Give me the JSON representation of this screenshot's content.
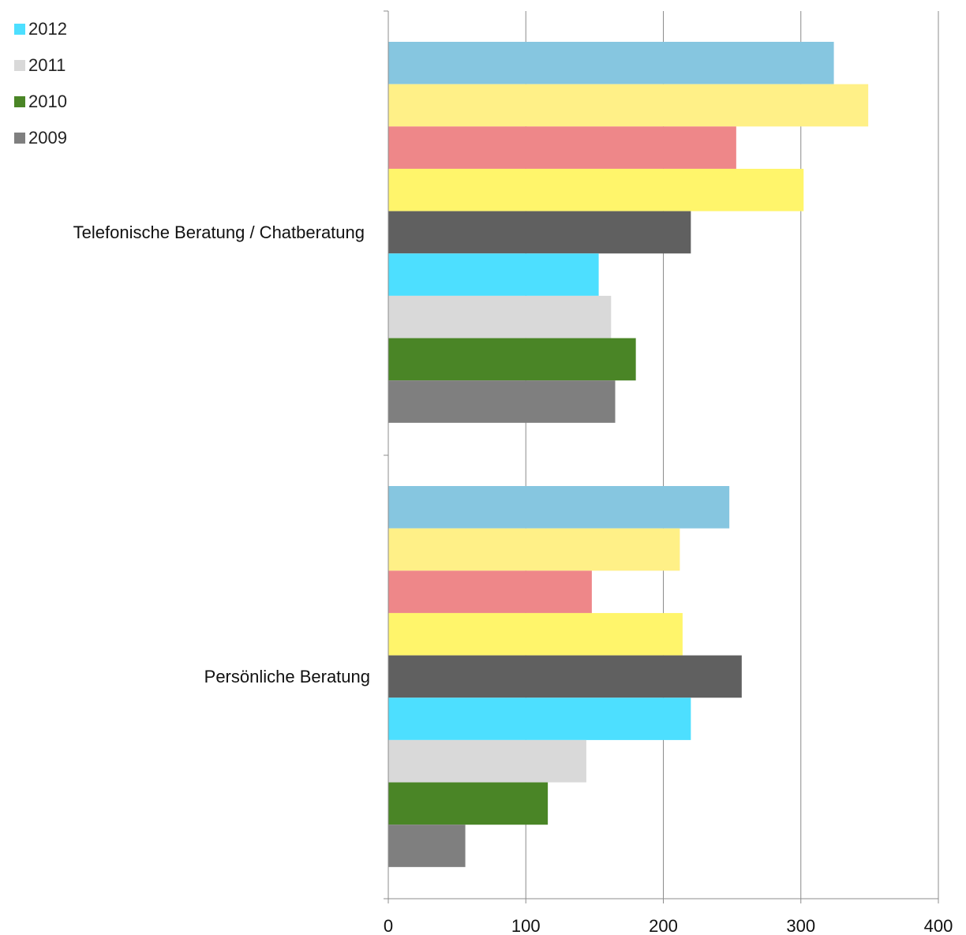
{
  "chart_data": {
    "type": "bar",
    "orientation": "horizontal",
    "categories": [
      "Telefonische Beratung / Chatberatung",
      "Persönliche Beratung"
    ],
    "xlim": [
      0,
      400
    ],
    "x_ticks": [
      "0",
      "100",
      "200",
      "300",
      "400"
    ],
    "grid": true,
    "legend_position": "top-left",
    "legend": [
      {
        "label": "2012",
        "color": "#4ddfff"
      },
      {
        "label": "2011",
        "color": "#d9d9d9"
      },
      {
        "label": "2010",
        "color": "#4a8526"
      },
      {
        "label": "2009",
        "color": "#7f7f7f"
      }
    ],
    "series": [
      {
        "color": "#86c6e0",
        "values": [
          324,
          248
        ]
      },
      {
        "color": "#fff087",
        "values": [
          349,
          212
        ]
      },
      {
        "color": "#ee8789",
        "values": [
          253,
          148
        ]
      },
      {
        "color": "#fff56b",
        "values": [
          302,
          214
        ]
      },
      {
        "color": "#606060",
        "values": [
          220,
          257
        ]
      },
      {
        "name": "2012",
        "color": "#4ddfff",
        "values": [
          153,
          220
        ]
      },
      {
        "name": "2011",
        "color": "#d9d9d9",
        "values": [
          162,
          144
        ]
      },
      {
        "name": "2010",
        "color": "#4a8526",
        "values": [
          180,
          116
        ]
      },
      {
        "name": "2009",
        "color": "#7f7f7f",
        "values": [
          165,
          56
        ]
      }
    ]
  }
}
